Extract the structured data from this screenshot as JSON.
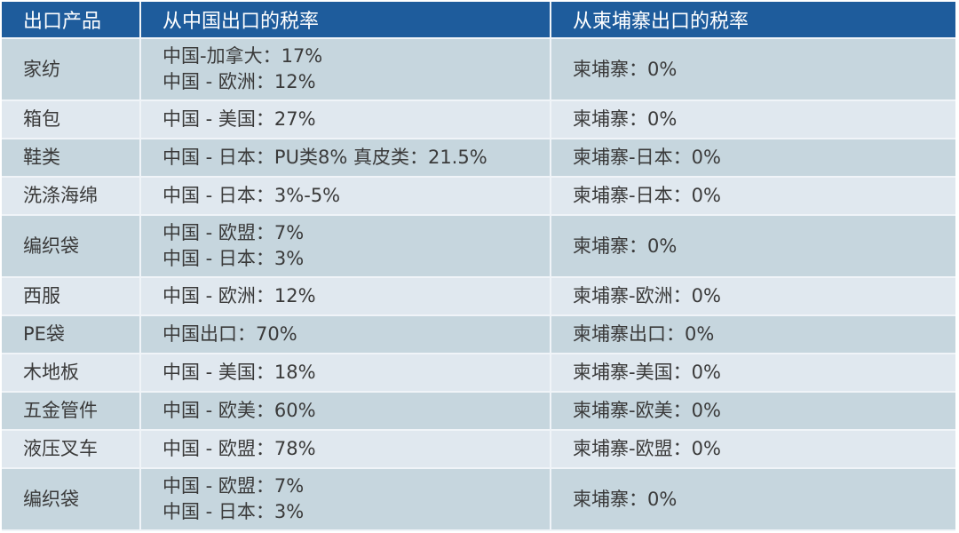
{
  "table": {
    "headers": [
      "出口产品",
      "从中国出口的税率",
      "从柬埔寨出口的税率"
    ],
    "colors": {
      "header_bg": "#1e5c9c",
      "row_odd": "#c6d6de",
      "row_even": "#e0e8ef"
    },
    "rows": [
      {
        "product": "家纺",
        "china": [
          "中国-加拿大：17%",
          "中国 - 欧洲：12%"
        ],
        "cambodia": "柬埔寨：0%"
      },
      {
        "product": "箱包",
        "china": [
          "中国 - 美国：27%"
        ],
        "cambodia": "柬埔寨：0%"
      },
      {
        "product": "鞋类",
        "china": [
          "中国 - 日本：PU类8% 真皮类：21.5%"
        ],
        "cambodia": "柬埔寨-日本：0%"
      },
      {
        "product": "洗涤海绵",
        "china": [
          "中国 - 日本：3%-5%"
        ],
        "cambodia": "柬埔寨-日本：0%"
      },
      {
        "product": "编织袋",
        "china": [
          "中国 - 欧盟：7%",
          "中国 - 日本：3%"
        ],
        "cambodia": "柬埔寨：0%"
      },
      {
        "product": "西服",
        "china": [
          "中国 - 欧洲：12%"
        ],
        "cambodia": "柬埔寨-欧洲：0%"
      },
      {
        "product": "PE袋",
        "china": [
          "中国出口：70%"
        ],
        "cambodia": "柬埔寨出口：0%"
      },
      {
        "product": "木地板",
        "china": [
          "中国 - 美国：18%"
        ],
        "cambodia": "柬埔寨-美国：0%"
      },
      {
        "product": "五金管件",
        "china": [
          "中国 - 欧美：60%"
        ],
        "cambodia": "柬埔寨-欧美：0%"
      },
      {
        "product": "液压叉车",
        "china": [
          "中国 - 欧盟：78%"
        ],
        "cambodia": "柬埔寨-欧盟：0%"
      },
      {
        "product": "编织袋",
        "china": [
          "中国 - 欧盟：7%",
          "中国 - 日本：3%"
        ],
        "cambodia": "柬埔寨：0%"
      }
    ]
  }
}
